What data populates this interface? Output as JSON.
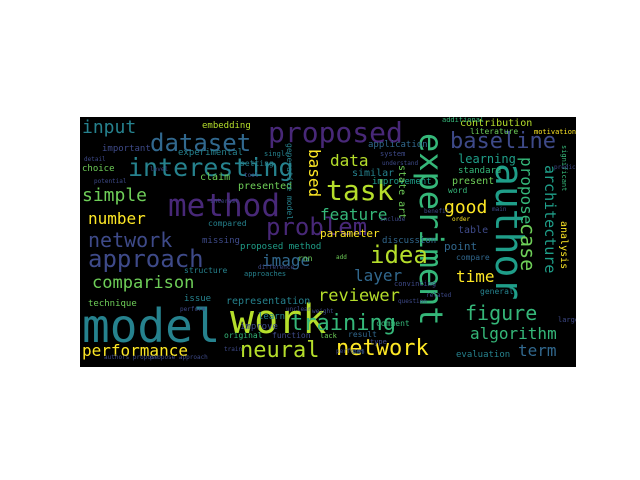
{
  "palette": {
    "background": "#000000",
    "purple_dark": "#3d1f5c",
    "purple": "#482878",
    "indigo": "#3e4a89",
    "blue": "#31688e",
    "teal": "#26828e",
    "teal_green": "#1f9e89",
    "green": "#35b779",
    "lime": "#6ece58",
    "yellow_green": "#b5de2b",
    "yellow": "#fde725"
  },
  "words": {
    "model": "model",
    "work": "work",
    "experiment": "experiment",
    "author": "author",
    "method": "method",
    "proposed": "proposed",
    "dataset": "dataset",
    "interesting": "interesting",
    "approach": "approach",
    "network_mid": "network",
    "network": "network",
    "neural": "neural",
    "task": "task",
    "problem": "problem",
    "training": "training",
    "performance": "performance",
    "baseline": "baseline",
    "idea": "idea",
    "simple": "simple",
    "input": "input",
    "number": "number",
    "comparison": "comparison",
    "figure": "figure",
    "algorithm": "algorithm",
    "reviewer": "reviewer",
    "case": "case",
    "propose": "propose",
    "architecture": "architecture",
    "feature": "feature",
    "data": "data",
    "based": "based",
    "image": "image",
    "layer": "layer",
    "good": "good",
    "time": "time",
    "term": "term",
    "learning": "learning",
    "contribution": "contribution",
    "literature": "literature",
    "additional": "additional",
    "standard": "standard",
    "present": "present",
    "application": "application",
    "system": "system",
    "similar": "similar",
    "improvement": "improvement",
    "state_art": "state art",
    "parameter": "parameter",
    "discussion": "discussion",
    "point": "point",
    "table": "table",
    "compare": "compare",
    "analysis": "analysis",
    "evaluation": "evaluation",
    "general": "general",
    "representation": "representation",
    "technique": "technique",
    "issue": "issue",
    "learn": "learn",
    "improve": "improve",
    "original": "original",
    "function": "function",
    "result": "result",
    "comment": "comment",
    "embedding": "embedding",
    "experimental": "experimental",
    "important": "important",
    "choice": "choice",
    "claim": "claim",
    "presented": "presented",
    "compared": "compared",
    "missing": "missing",
    "proposed_method": "proposed method",
    "generative_model": "generative model",
    "structure": "structure",
    "rnn": "rnn",
    "approaches": "approaches",
    "setting": "setting",
    "single": "single",
    "word": "word",
    "motivation": "motivation",
    "significant": "significant",
    "authors_propose": "authors propose",
    "propose_approach": "propose approach",
    "lack": "lack",
    "convincing": "convincing",
    "large": "large",
    "type": "type",
    "weight": "weight",
    "set": "set",
    "train": "train",
    "order": "order",
    "benefit": "benefit",
    "understand": "understand",
    "prediction": "prediction",
    "detail": "detail",
    "potential": "potential",
    "unclear": "unclear",
    "question": "question",
    "include": "include",
    "add": "add",
    "performs": "performs",
    "difference": "difference",
    "perform": "perform",
    "main": "main",
    "level": "level",
    "interest": "interest",
    "tool": "tool",
    "related": "related"
  }
}
